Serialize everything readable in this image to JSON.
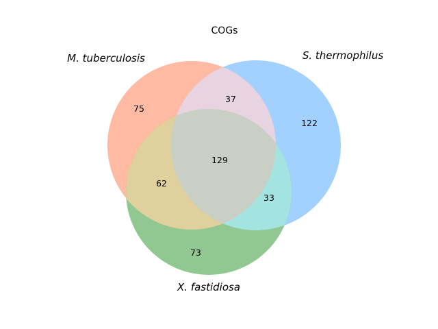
{
  "diagram": {
    "title": "COGs",
    "sets": [
      {
        "key": "A",
        "label": "M. tuberculosis",
        "color": "#ff9f80"
      },
      {
        "key": "B",
        "label": "S. thermophilus",
        "color": "#80bfff"
      },
      {
        "key": "C",
        "label": "X. fastidiosa",
        "color": "#66b366"
      }
    ],
    "intersection_colors": {
      "A_B": "#e8d4e0",
      "A_C": "#e0d09e",
      "B_C": "#a4e4e0",
      "A_B_C": "#c9cfc4"
    },
    "regions": {
      "A_only": "75",
      "B_only": "122",
      "C_only": "73",
      "A_B": "37",
      "A_C": "62",
      "B_C": "33",
      "A_B_C": "129"
    }
  }
}
